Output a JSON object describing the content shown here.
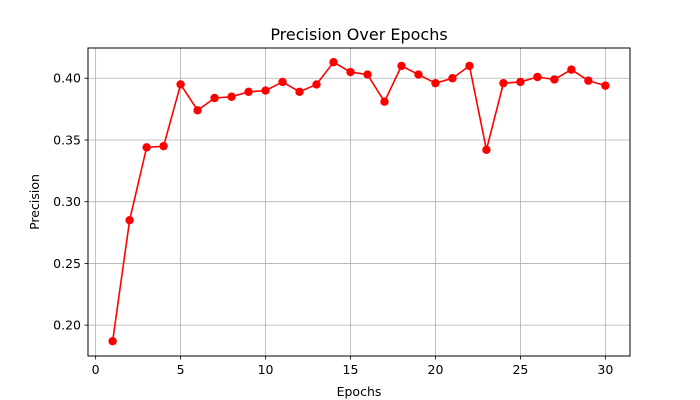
{
  "chart_data": {
    "type": "line",
    "title": "Precision Over Epochs",
    "xlabel": "Epochs",
    "ylabel": "Precision",
    "xlim": [
      -0.45,
      31.45
    ],
    "ylim": [
      0.175,
      0.4245
    ],
    "x_ticks": [
      0,
      5,
      10,
      15,
      20,
      25,
      30
    ],
    "y_ticks": [
      0.2,
      0.25,
      0.3,
      0.35,
      0.4
    ],
    "y_tick_labels": [
      "0.20",
      "0.25",
      "0.30",
      "0.35",
      "0.40"
    ],
    "grid": true,
    "series": [
      {
        "color": "#ff0000",
        "marker": "circle",
        "x": [
          1,
          2,
          3,
          4,
          5,
          6,
          7,
          8,
          9,
          10,
          11,
          12,
          13,
          14,
          15,
          16,
          17,
          18,
          19,
          20,
          21,
          22,
          23,
          24,
          25,
          26,
          27,
          28,
          29,
          30
        ],
        "values": [
          0.187,
          0.285,
          0.344,
          0.345,
          0.395,
          0.374,
          0.384,
          0.385,
          0.389,
          0.39,
          0.397,
          0.389,
          0.395,
          0.413,
          0.405,
          0.403,
          0.381,
          0.41,
          0.403,
          0.396,
          0.4,
          0.41,
          0.342,
          0.396,
          0.397,
          0.401,
          0.399,
          0.407,
          0.398,
          0.394
        ]
      }
    ]
  }
}
